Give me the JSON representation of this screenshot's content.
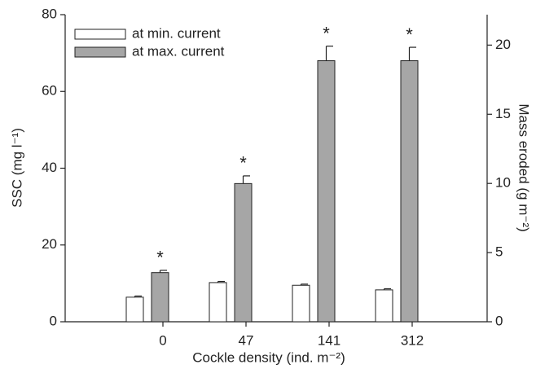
{
  "chart_data": {
    "type": "bar",
    "x_label": "Cockle density (ind. m⁻²)",
    "y_label": "SSC (mg l⁻¹)",
    "y2_label": "Mass eroded (g m⁻²)",
    "categories": [
      "0",
      "47",
      "141",
      "312"
    ],
    "series": [
      {
        "name": "at min. current",
        "color": "#ffffff",
        "values": [
          6.4,
          10.2,
          9.5,
          8.3
        ],
        "errors": [
          0.3,
          0.3,
          0.3,
          0.3
        ]
      },
      {
        "name": "at max. current",
        "color": "#a6a6a6",
        "values": [
          12.8,
          36,
          68,
          68
        ],
        "errors": [
          0.6,
          2,
          3.8,
          3.5
        ]
      }
    ],
    "significance": [
      "*",
      "*",
      "*",
      "*"
    ],
    "ylim": [
      0,
      80
    ],
    "yticks": [
      0,
      20,
      40,
      60,
      80
    ],
    "y2lim": [
      0,
      22.2
    ],
    "y2ticks": [
      0,
      5,
      10,
      15,
      20
    ],
    "legend": "upper-left",
    "grid": false
  }
}
